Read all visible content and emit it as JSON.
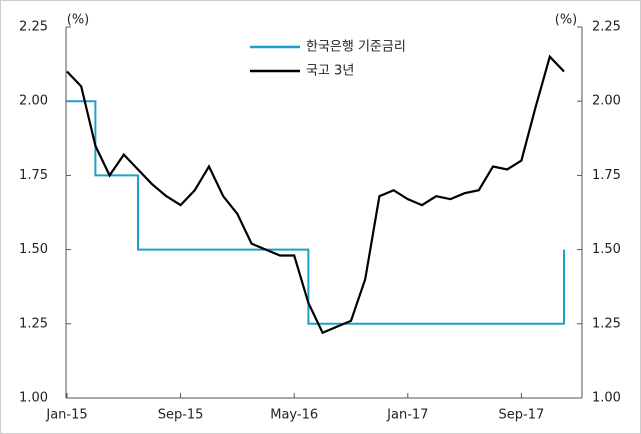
{
  "chart_data": {
    "type": "line",
    "y_unit": "(%)",
    "y2_unit": "(%)",
    "x": [
      "2015-01",
      "2015-02",
      "2015-03",
      "2015-04",
      "2015-05",
      "2015-06",
      "2015-07",
      "2015-08",
      "2015-09",
      "2015-10",
      "2015-11",
      "2015-12",
      "2016-01",
      "2016-02",
      "2016-03",
      "2016-04",
      "2016-05",
      "2016-06",
      "2016-07",
      "2016-08",
      "2016-09",
      "2016-10",
      "2016-11",
      "2016-12",
      "2017-01",
      "2017-02",
      "2017-03",
      "2017-04",
      "2017-05",
      "2017-06",
      "2017-07",
      "2017-08",
      "2017-09",
      "2017-10",
      "2017-11",
      "2017-12"
    ],
    "xticks": [
      {
        "value": "2015-01",
        "label": "Jan-15"
      },
      {
        "value": "2015-09",
        "label": "Sep-15"
      },
      {
        "value": "2016-05",
        "label": "May-16"
      },
      {
        "value": "2017-01",
        "label": "Jan-17"
      },
      {
        "value": "2017-09",
        "label": "Sep-17"
      }
    ],
    "series": [
      {
        "name": "한국은행 기준금리",
        "color": "#1fa0c8",
        "step": true,
        "values": [
          2.0,
          2.0,
          1.75,
          1.75,
          1.75,
          1.5,
          1.5,
          1.5,
          1.5,
          1.5,
          1.5,
          1.5,
          1.5,
          1.5,
          1.5,
          1.5,
          1.5,
          1.25,
          1.25,
          1.25,
          1.25,
          1.25,
          1.25,
          1.25,
          1.25,
          1.25,
          1.25,
          1.25,
          1.25,
          1.25,
          1.25,
          1.25,
          1.25,
          1.25,
          1.25,
          1.5
        ]
      },
      {
        "name": "국고 3년",
        "color": "#000000",
        "step": false,
        "values": [
          2.1,
          2.05,
          1.85,
          1.75,
          1.82,
          1.77,
          1.72,
          1.68,
          1.65,
          1.7,
          1.78,
          1.68,
          1.62,
          1.52,
          1.5,
          1.48,
          1.48,
          1.32,
          1.22,
          1.24,
          1.26,
          1.4,
          1.68,
          1.7,
          1.67,
          1.65,
          1.68,
          1.67,
          1.69,
          1.7,
          1.78,
          1.77,
          1.8,
          1.98,
          2.15,
          2.1
        ]
      }
    ],
    "ylim": [
      1.0,
      2.25
    ],
    "yticks": [
      {
        "value": 1.0,
        "label": "1.00"
      },
      {
        "value": 1.25,
        "label": "1.25"
      },
      {
        "value": 1.5,
        "label": "1.50"
      },
      {
        "value": 1.75,
        "label": "1.75"
      },
      {
        "value": 2.0,
        "label": "2.00"
      },
      {
        "value": 2.25,
        "label": "2.25"
      }
    ],
    "y2lim": [
      1.0,
      2.25
    ],
    "y2ticks": [
      {
        "value": 1.0,
        "label": "1.00"
      },
      {
        "value": 1.25,
        "label": "1.25"
      },
      {
        "value": 1.5,
        "label": "1.50"
      },
      {
        "value": 1.75,
        "label": "1.75"
      },
      {
        "value": 2.0,
        "label": "2.00"
      },
      {
        "value": 2.25,
        "label": "2.25"
      }
    ],
    "legend": "top"
  }
}
